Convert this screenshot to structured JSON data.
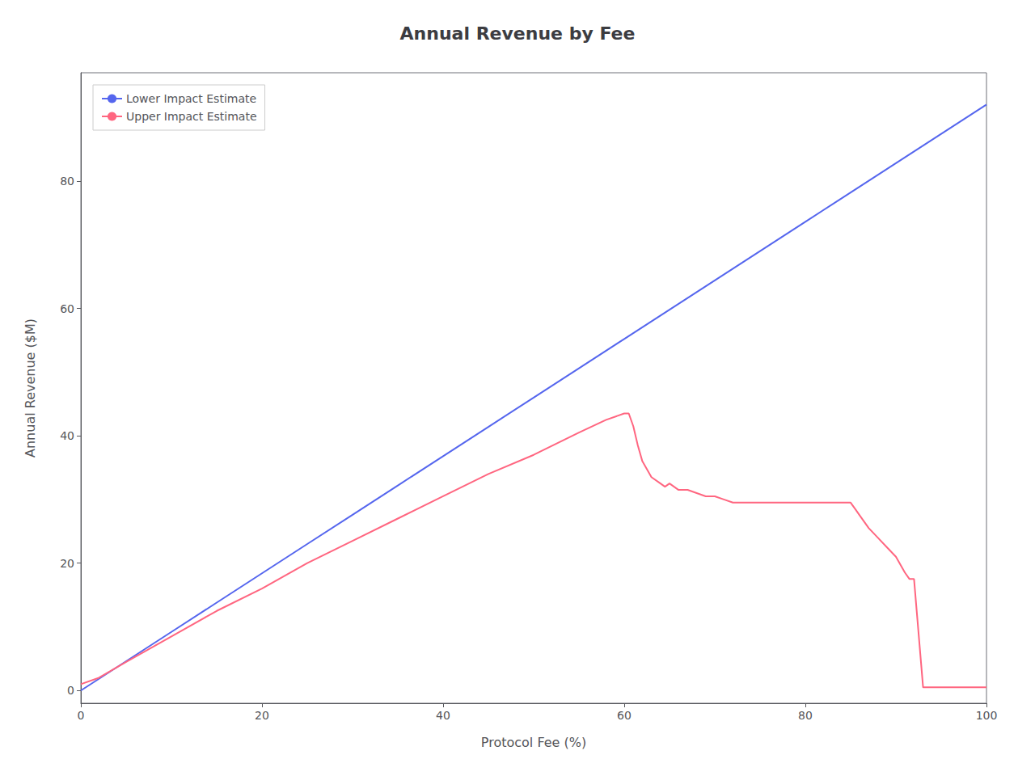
{
  "chart_data": {
    "type": "line",
    "title": "Annual Revenue by Fee",
    "xlabel": "Protocol Fee (%)",
    "ylabel": "Annual Revenue ($M)",
    "xlim": [
      0,
      100
    ],
    "xticks": [
      0,
      20,
      40,
      60,
      80,
      100
    ],
    "ylim": [
      -2,
      97
    ],
    "yticks": [
      0,
      20,
      40,
      60,
      80
    ],
    "grid": false,
    "legend": "upper left",
    "series": [
      {
        "name": "Lower Impact Estimate",
        "color": "#5566ee",
        "x": [
          0,
          5,
          10,
          15,
          20,
          25,
          30,
          35,
          40,
          45,
          50,
          55,
          60,
          65,
          70,
          75,
          80,
          85,
          90,
          95,
          100
        ],
        "values": [
          0,
          4.6,
          9.2,
          13.8,
          18.4,
          23.0,
          27.6,
          32.2,
          36.8,
          41.4,
          46.0,
          50.6,
          55.2,
          59.8,
          64.4,
          69.0,
          73.6,
          78.2,
          82.8,
          87.4,
          92.0
        ]
      },
      {
        "name": "Upper Impact Estimate",
        "color": "#ff6680",
        "x": [
          0,
          2,
          5,
          10,
          15,
          20,
          25,
          30,
          35,
          40,
          45,
          50,
          55,
          58,
          60,
          60.5,
          61,
          61.5,
          62,
          63,
          64,
          64.5,
          65,
          65.5,
          66,
          67,
          68,
          69,
          70,
          71,
          72,
          73,
          74,
          75,
          76,
          77,
          78,
          79,
          80,
          81,
          82,
          83,
          84,
          85,
          85.5,
          86,
          87,
          88,
          89,
          90,
          91,
          91.5,
          92,
          93,
          95,
          97,
          100
        ],
        "values": [
          1,
          2,
          4.5,
          8.5,
          12.5,
          16.0,
          20.0,
          23.5,
          27.0,
          30.5,
          34.0,
          37.0,
          40.5,
          42.5,
          43.5,
          43.5,
          41.5,
          38.5,
          36.0,
          33.5,
          32.5,
          32.0,
          32.5,
          32.0,
          31.5,
          31.5,
          31.0,
          30.5,
          30.5,
          30.0,
          29.5,
          29.5,
          29.5,
          29.5,
          29.5,
          29.5,
          29.5,
          29.5,
          29.5,
          29.5,
          29.5,
          29.5,
          29.5,
          29.5,
          28.5,
          27.5,
          25.5,
          24.0,
          22.5,
          21.0,
          18.5,
          17.5,
          17.5,
          0.5,
          0.5,
          0.5,
          0.5
        ]
      }
    ]
  }
}
